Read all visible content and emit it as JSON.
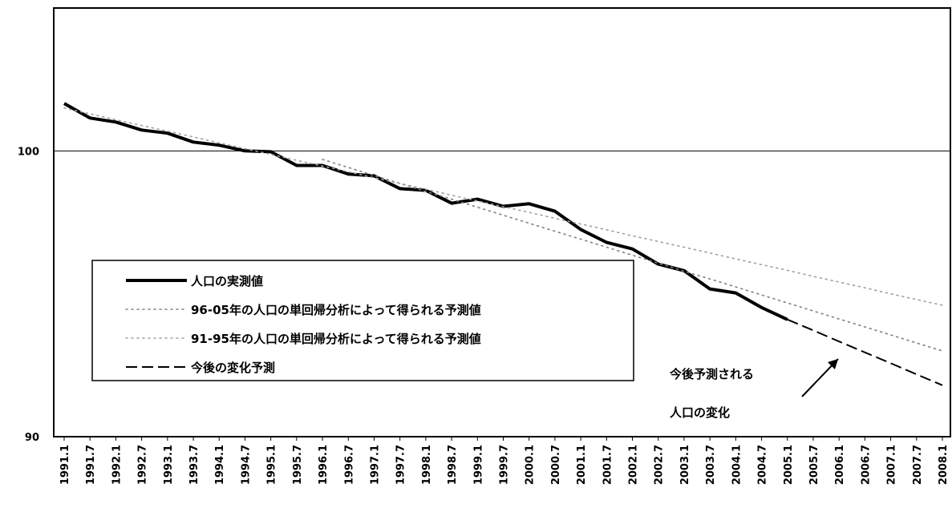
{
  "chart_data": {
    "type": "line",
    "categories": [
      "1991.1",
      "1991.7",
      "1992.1",
      "1992.7",
      "1993.1",
      "1993.7",
      "1994.1",
      "1994.7",
      "1995.1",
      "1995.7",
      "1996.1",
      "1996.7",
      "1997.1",
      "1997.7",
      "1998.1",
      "1998.7",
      "1999.1",
      "1999.7",
      "2000.1",
      "2000.7",
      "2001.1",
      "2001.7",
      "2002.1",
      "2002.7",
      "2003.1",
      "2003.7",
      "2004.1",
      "2004.7",
      "2005.1",
      "2005.7",
      "2006.1",
      "2006.7",
      "2007.1",
      "2007.7",
      "2008.1"
    ],
    "series": [
      {
        "name": "人口の実測値",
        "color": "#000000",
        "style": "solid",
        "values": [
          101.66,
          101.15,
          101.01,
          100.73,
          100.62,
          100.31,
          100.2,
          100.0,
          99.97,
          99.49,
          99.49,
          99.19,
          99.13,
          98.68,
          98.62,
          98.17,
          98.31,
          98.06,
          98.15,
          97.89,
          97.25,
          96.8,
          96.57,
          96.04,
          95.81,
          95.17,
          95.03,
          94.52,
          94.1,
          null,
          null,
          null,
          null,
          null,
          null
        ]
      },
      {
        "name": "96-05年の人口の単回帰分析によって得られる予測値",
        "color": "#808080",
        "style": "dotted",
        "values": [
          null,
          null,
          null,
          null,
          null,
          null,
          null,
          null,
          null,
          null,
          99.7,
          99.42,
          99.14,
          98.86,
          98.58,
          98.31,
          98.03,
          97.75,
          97.47,
          97.19,
          96.91,
          96.63,
          96.35,
          96.07,
          95.79,
          95.52,
          95.24,
          94.96,
          94.68,
          94.4,
          94.12,
          93.84,
          93.56,
          93.28,
          93.0
        ]
      },
      {
        "name": "91-95年の人口の単回帰分析によって得られる予測値",
        "color": "#a0a0a0",
        "style": "dotted",
        "values": [
          101.5,
          101.3,
          101.09,
          100.89,
          100.69,
          100.49,
          100.28,
          100.08,
          99.88,
          99.67,
          99.47,
          99.27,
          99.06,
          98.86,
          98.66,
          98.45,
          98.25,
          98.05,
          97.85,
          97.64,
          97.44,
          97.24,
          97.03,
          96.83,
          96.63,
          96.43,
          96.22,
          96.02,
          95.82,
          95.61,
          95.41,
          95.21,
          95.0,
          94.8,
          94.6
        ]
      },
      {
        "name": "今後の変化予測",
        "color": "#000000",
        "style": "dashed",
        "values": [
          null,
          null,
          null,
          null,
          null,
          null,
          null,
          null,
          null,
          null,
          null,
          null,
          null,
          null,
          null,
          null,
          null,
          null,
          null,
          null,
          null,
          null,
          null,
          null,
          null,
          null,
          null,
          null,
          94.1,
          93.72,
          93.33,
          92.95,
          92.57,
          92.18,
          91.8
        ]
      }
    ],
    "ylim": [
      90,
      105
    ],
    "yticks": [
      90,
      100
    ],
    "grid": true,
    "annotation": [
      "今後予測される",
      "人口の変化"
    ]
  }
}
